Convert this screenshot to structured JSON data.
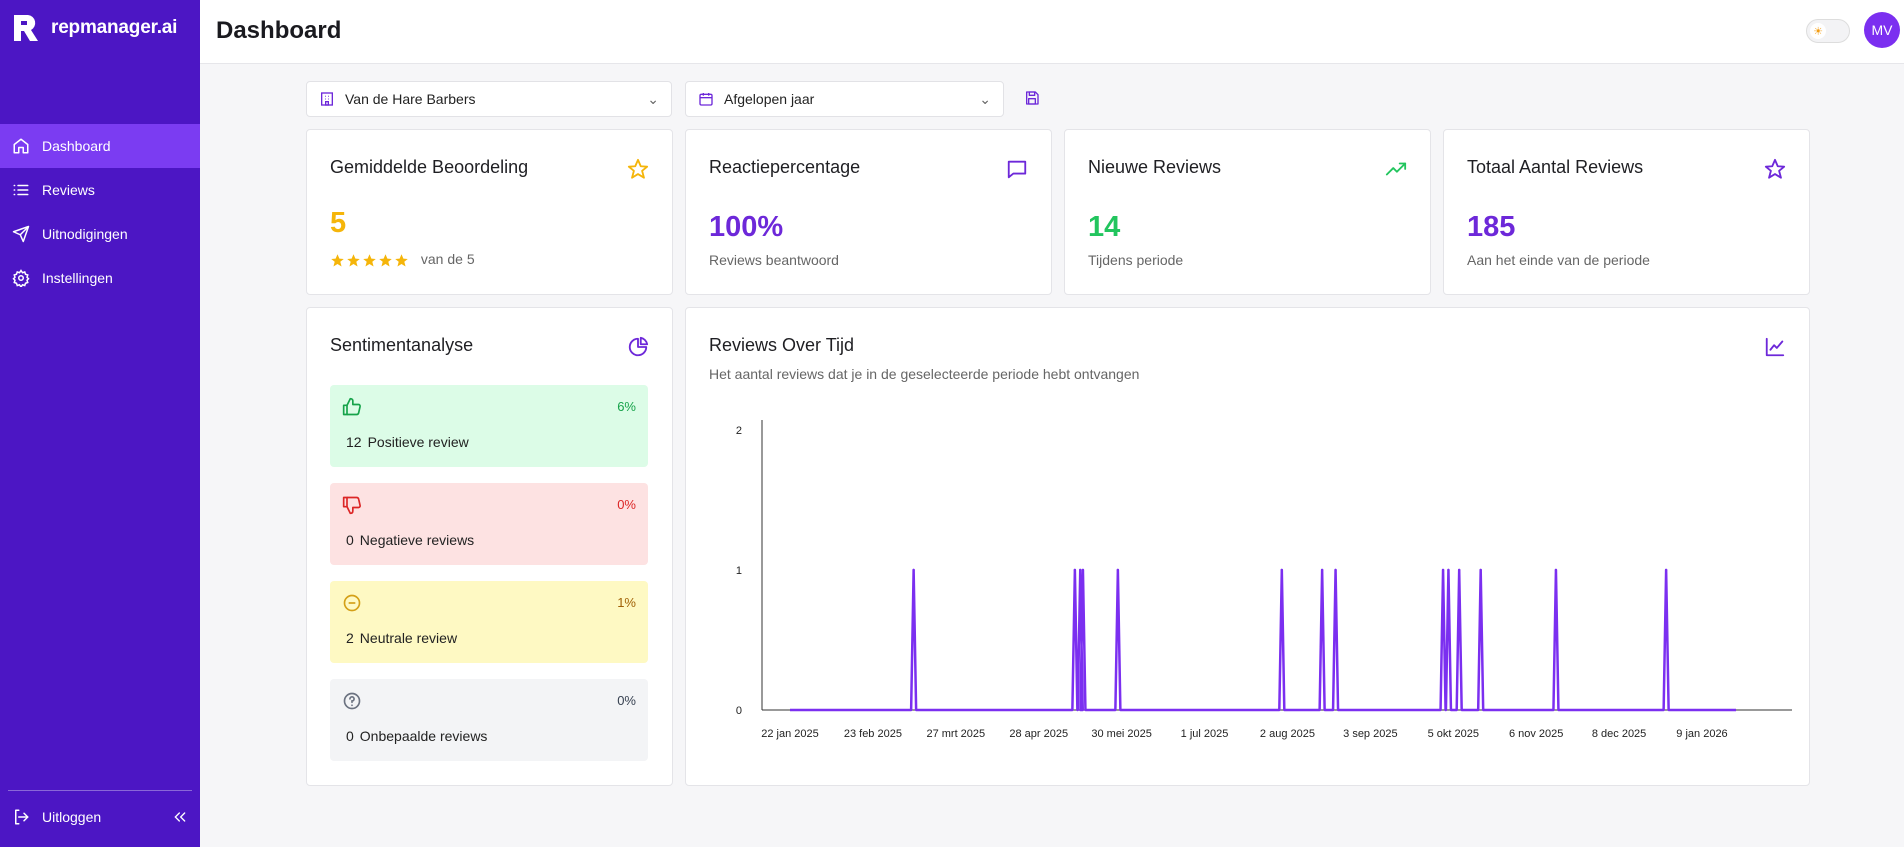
{
  "app": {
    "logo_text": "repmanager.ai"
  },
  "sidebar": {
    "items": [
      {
        "label": "Dashboard"
      },
      {
        "label": "Reviews"
      },
      {
        "label": "Uitnodigingen"
      },
      {
        "label": "Instellingen"
      }
    ],
    "logout_label": "Uitloggen"
  },
  "header": {
    "title": "Dashboard",
    "avatar_initials": "MV"
  },
  "filters": {
    "location": "Van de Hare Barbers",
    "period": "Afgelopen jaar"
  },
  "stats": {
    "rating": {
      "title": "Gemiddelde Beoordeling",
      "value": "5",
      "sub": "van de 5",
      "stars": 5
    },
    "response": {
      "title": "Reactiepercentage",
      "value": "100%",
      "sub": "Reviews beantwoord"
    },
    "new_reviews": {
      "title": "Nieuwe Reviews",
      "value": "14",
      "sub": "Tijdens periode"
    },
    "total_reviews": {
      "title": "Totaal Aantal Reviews",
      "value": "185",
      "sub": "Aan het einde van de periode"
    }
  },
  "sentiment": {
    "title": "Sentimentanalyse",
    "positive": {
      "pct": "6%",
      "count": "12",
      "label": "Positieve review"
    },
    "negative": {
      "pct": "0%",
      "count": "0",
      "label": "Negatieve reviews"
    },
    "neutral": {
      "pct": "1%",
      "count": "2",
      "label": "Neutrale review"
    },
    "undetermined": {
      "pct": "0%",
      "count": "0",
      "label": "Onbepaalde reviews"
    }
  },
  "chart_title": "Reviews Over Tijd",
  "chart_subtitle": "Het aantal reviews dat je in de geselecteerde periode hebt ontvangen",
  "colors": {
    "primary": "#4c16c4",
    "accent": "#7b2ff0",
    "star": "#f5b50a",
    "green": "#22c55e",
    "red": "#e53935",
    "yellow": "#d4a017"
  },
  "chart_data": {
    "type": "line",
    "title": "Reviews Over Tijd",
    "xlabel": "",
    "ylabel": "",
    "ylim": [
      0,
      2
    ],
    "yticks": [
      "0",
      "1",
      "2"
    ],
    "xticks": [
      "22 jan 2025",
      "23 feb 2025",
      "27 mrt 2025",
      "28 apr 2025",
      "30 mei 2025",
      "1 jul 2025",
      "2 aug 2025",
      "3 sep 2025",
      "5 okt 2025",
      "6 nov 2025",
      "8 dec 2025",
      "9 jan 2026"
    ],
    "x_range_days": [
      0,
      352
    ],
    "peaks_day_offset": [
      46,
      106,
      108,
      109,
      122,
      183,
      198,
      203,
      243,
      245,
      249,
      257,
      285,
      326
    ],
    "series": [
      {
        "name": "Reviews",
        "value_at_peaks": 1,
        "baseline": 0
      }
    ]
  }
}
